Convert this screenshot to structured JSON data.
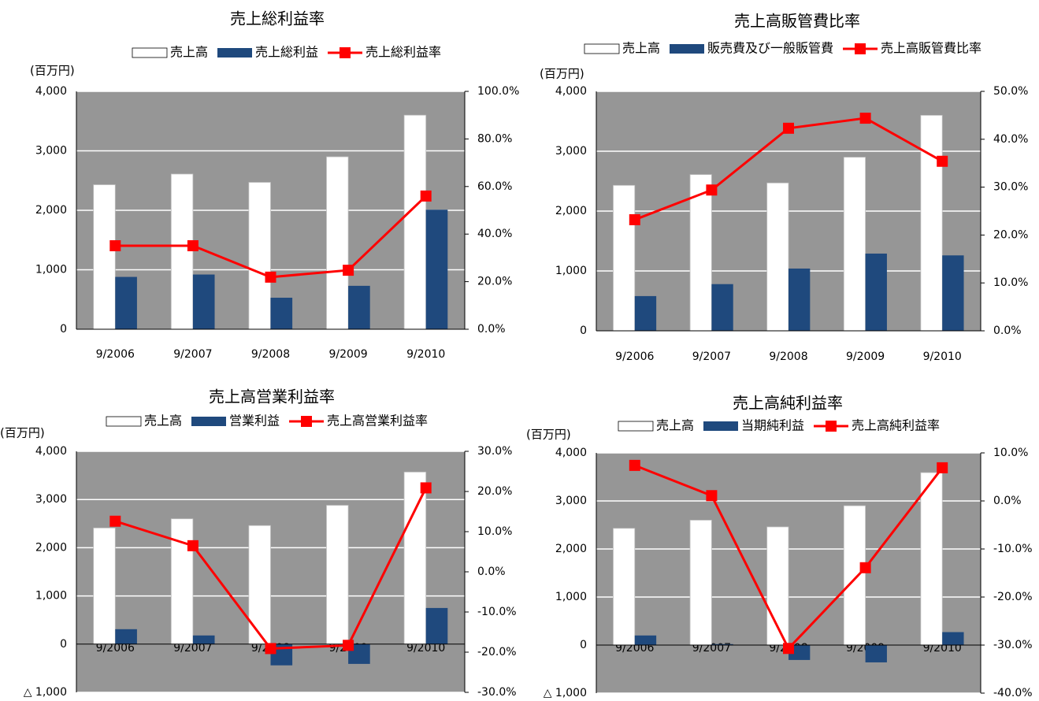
{
  "chart_data": [
    {
      "type": "bar",
      "title": "売上総利益率",
      "unit": "(百万円)",
      "categories": [
        "9/2006",
        "9/2007",
        "9/2008",
        "9/2009",
        "9/2010"
      ],
      "series": [
        {
          "name": "売上高",
          "type": "bar",
          "color": "#ffffff",
          "values": [
            2430,
            2610,
            2470,
            2900,
            3600
          ]
        },
        {
          "name": "売上総利益",
          "type": "bar",
          "color": "#1f497d",
          "values": [
            880,
            920,
            530,
            730,
            2010
          ]
        },
        {
          "name": "売上総利益率",
          "type": "line",
          "axis": "y2",
          "color": "#ff0000",
          "values": [
            35.1,
            35.1,
            21.9,
            24.8,
            56.0
          ]
        }
      ],
      "ylim": [
        0,
        4000
      ],
      "yticks": [
        0,
        {
          "value": 1000,
          "label": "1,000"
        },
        {
          "value": 2000,
          "label": "2,000"
        },
        {
          "value": 3000,
          "label": "3,000"
        },
        {
          "value": 4000,
          "label": "4,000"
        }
      ],
      "y2lim": [
        0,
        100
      ],
      "y2ticks": [
        {
          "value": 0,
          "label": "0.0%"
        },
        {
          "value": 20,
          "label": "20.0%"
        },
        {
          "value": 40,
          "label": "40.0%"
        },
        {
          "value": 60,
          "label": "60.0%"
        },
        {
          "value": 80,
          "label": "80.0%"
        },
        {
          "value": 100,
          "label": "100.0%"
        }
      ],
      "grid": true
    },
    {
      "type": "bar",
      "title": "売上高販管費比率",
      "unit": "(百万円)",
      "categories": [
        "9/2006",
        "9/2007",
        "9/2008",
        "9/2009",
        "9/2010"
      ],
      "series": [
        {
          "name": "売上高",
          "type": "bar",
          "color": "#ffffff",
          "values": [
            2430,
            2610,
            2470,
            2900,
            3600
          ]
        },
        {
          "name": "販売費及び一般販管費",
          "type": "bar",
          "color": "#1f497d",
          "values": [
            580,
            780,
            1040,
            1290,
            1260
          ]
        },
        {
          "name": "売上高販管費比率",
          "type": "line",
          "axis": "y2",
          "color": "#ff0000",
          "values": [
            23.2,
            29.4,
            42.3,
            44.4,
            35.4
          ]
        }
      ],
      "ylim": [
        0,
        4000
      ],
      "yticks": [
        0,
        {
          "value": 1000,
          "label": "1,000"
        },
        {
          "value": 2000,
          "label": "2,000"
        },
        {
          "value": 3000,
          "label": "3,000"
        },
        {
          "value": 4000,
          "label": "4,000"
        }
      ],
      "y2lim": [
        0,
        50
      ],
      "y2ticks": [
        {
          "value": 0,
          "label": "0.0%"
        },
        {
          "value": 10,
          "label": "10.0%"
        },
        {
          "value": 20,
          "label": "20.0%"
        },
        {
          "value": 30,
          "label": "30.0%"
        },
        {
          "value": 40,
          "label": "40.0%"
        },
        {
          "value": 50,
          "label": "50.0%"
        }
      ],
      "grid": true
    },
    {
      "type": "bar",
      "title": "売上高営業利益率",
      "unit": "(百万円)",
      "categories": [
        "9/2006",
        "9/2007",
        "9/2008",
        "9/2009",
        "9/2010"
      ],
      "series": [
        {
          "name": "売上高",
          "type": "bar",
          "color": "#ffffff",
          "values": [
            2410,
            2600,
            2460,
            2880,
            3570
          ]
        },
        {
          "name": "営業利益",
          "type": "bar",
          "color": "#1f497d",
          "values": [
            310,
            180,
            -440,
            -410,
            750
          ]
        },
        {
          "name": "売上高営業利益率",
          "type": "line",
          "axis": "y2",
          "color": "#ff0000",
          "values": [
            12.6,
            6.5,
            -19.1,
            -18.3,
            20.9
          ]
        }
      ],
      "ylim": [
        -1000,
        4000
      ],
      "yticks": [
        {
          "value": -1000,
          "label": "△ 1,000"
        },
        0,
        {
          "value": 1000,
          "label": "1,000"
        },
        {
          "value": 2000,
          "label": "2,000"
        },
        {
          "value": 3000,
          "label": "3,000"
        },
        {
          "value": 4000,
          "label": "4,000"
        }
      ],
      "y2lim": [
        -30,
        30
      ],
      "y2ticks": [
        {
          "value": -30,
          "label": "-30.0%"
        },
        {
          "value": -20,
          "label": "-20.0%"
        },
        {
          "value": -10,
          "label": "-10.0%"
        },
        {
          "value": 0,
          "label": "0.0%"
        },
        {
          "value": 10,
          "label": "10.0%"
        },
        {
          "value": 20,
          "label": "20.0%"
        },
        {
          "value": 30,
          "label": "30.0%"
        }
      ],
      "grid": true
    },
    {
      "type": "bar",
      "title": "売上高純利益率",
      "unit": "(百万円)",
      "categories": [
        "9/2006",
        "9/2007",
        "9/2008",
        "9/2009",
        "9/2010"
      ],
      "series": [
        {
          "name": "売上高",
          "type": "bar",
          "color": "#ffffff",
          "values": [
            2430,
            2600,
            2460,
            2900,
            3590
          ]
        },
        {
          "name": "当期純利益",
          "type": "bar",
          "color": "#1f497d",
          "values": [
            200,
            20,
            -310,
            -360,
            270
          ]
        },
        {
          "name": "売上高純利益率",
          "type": "line",
          "axis": "y2",
          "color": "#ff0000",
          "values": [
            7.4,
            1.1,
            -30.7,
            -13.9,
            6.9
          ]
        }
      ],
      "ylim": [
        -1000,
        4000
      ],
      "yticks": [
        {
          "value": -1000,
          "label": "△ 1,000"
        },
        0,
        {
          "value": 1000,
          "label": "1,000"
        },
        {
          "value": 2000,
          "label": "2,000"
        },
        {
          "value": 3000,
          "label": "3,000"
        },
        {
          "value": 4000,
          "label": "4,000"
        }
      ],
      "y2lim": [
        -40,
        10
      ],
      "y2ticks": [
        {
          "value": -40,
          "label": "-40.0%"
        },
        {
          "value": -30,
          "label": "-30.0%"
        },
        {
          "value": -20,
          "label": "-20.0%"
        },
        {
          "value": -10,
          "label": "-10.0%"
        },
        {
          "value": 0,
          "label": "0.0%"
        },
        {
          "value": 10,
          "label": "10.0%"
        }
      ],
      "grid": true
    }
  ]
}
